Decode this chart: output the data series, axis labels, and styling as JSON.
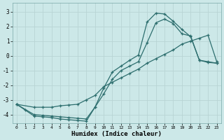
{
  "xlabel": "Humidex (Indice chaleur)",
  "bg_color": "#cce8e8",
  "grid_color": "#b8d4d4",
  "line_color": "#2d6e6e",
  "xlim": [
    -0.5,
    23.5
  ],
  "ylim": [
    -4.6,
    3.6
  ],
  "xticks": [
    0,
    1,
    2,
    3,
    4,
    5,
    6,
    7,
    8,
    9,
    10,
    11,
    12,
    13,
    14,
    15,
    16,
    17,
    18,
    19,
    20,
    21,
    22,
    23
  ],
  "yticks": [
    -4,
    -3,
    -2,
    -1,
    0,
    1,
    2,
    3
  ],
  "line1_x": [
    0,
    1,
    2,
    3,
    4,
    5,
    6,
    7,
    8,
    9,
    10,
    11,
    12,
    13,
    14,
    15,
    16,
    17,
    18,
    19,
    20,
    21,
    22,
    23
  ],
  "line1_y": [
    -3.3,
    -3.7,
    -4.1,
    -4.15,
    -4.2,
    -4.3,
    -4.35,
    -4.4,
    -4.45,
    -3.5,
    -2.2,
    -1.1,
    -0.7,
    -0.3,
    0.05,
    2.3,
    2.9,
    2.85,
    2.35,
    1.8,
    1.3,
    -0.3,
    -0.4,
    -0.5
  ],
  "line2_x": [
    0,
    2,
    3,
    4,
    5,
    6,
    7,
    8,
    9,
    10,
    11,
    12,
    13,
    14,
    15,
    16,
    17,
    18,
    19,
    20,
    21,
    22,
    23
  ],
  "line2_y": [
    -3.3,
    -4.0,
    -4.05,
    -4.1,
    -4.15,
    -4.2,
    -4.25,
    -4.3,
    -3.5,
    -2.6,
    -1.6,
    -1.0,
    -0.7,
    -0.4,
    0.9,
    2.25,
    2.5,
    2.2,
    1.5,
    1.35,
    -0.3,
    -0.45,
    -0.5
  ],
  "line3_x": [
    0,
    2,
    3,
    4,
    5,
    6,
    7,
    8,
    9,
    10,
    11,
    12,
    13,
    14,
    15,
    16,
    17,
    18,
    19,
    20,
    21,
    22,
    23
  ],
  "line3_y": [
    -3.3,
    -3.5,
    -3.5,
    -3.5,
    -3.4,
    -3.35,
    -3.3,
    -3.0,
    -2.7,
    -2.1,
    -1.8,
    -1.5,
    -1.2,
    -0.9,
    -0.5,
    -0.2,
    0.1,
    0.4,
    0.8,
    1.0,
    1.2,
    1.4,
    -0.4
  ],
  "font": "monospace"
}
